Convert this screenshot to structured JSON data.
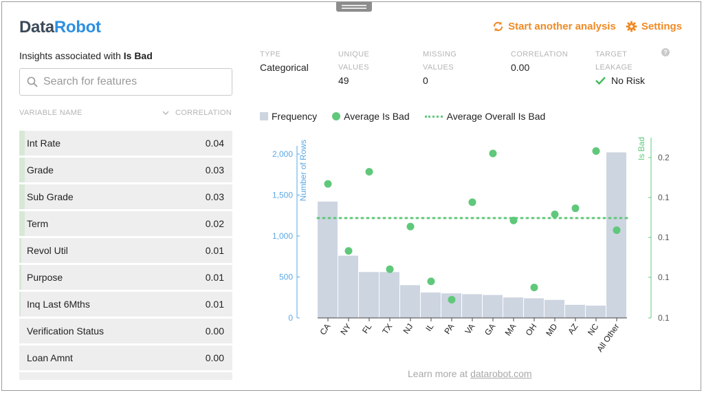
{
  "brand": {
    "part1": "Data",
    "part2": "Robot"
  },
  "header": {
    "start_label": "Start another analysis",
    "settings_label": "Settings"
  },
  "sidebar": {
    "insights_prefix": "Insights associated with ",
    "insights_target": "Is Bad",
    "search_placeholder": "Search for features",
    "col_variable": "VARIABLE NAME",
    "col_correlation": "CORRELATION",
    "rows": [
      {
        "name": "Int Rate",
        "value": "0.04"
      },
      {
        "name": "Grade",
        "value": "0.03"
      },
      {
        "name": "Sub Grade",
        "value": "0.03"
      },
      {
        "name": "Term",
        "value": "0.02"
      },
      {
        "name": "Revol Util",
        "value": "0.01"
      },
      {
        "name": "Purpose",
        "value": "0.01"
      },
      {
        "name": "Inq Last 6Mths",
        "value": "0.01"
      },
      {
        "name": "Verification Status",
        "value": "0.00"
      },
      {
        "name": "Loan Amnt",
        "value": "0.00"
      }
    ]
  },
  "stats": {
    "type": {
      "l1": "TYPE",
      "l2": "",
      "value": "Categorical"
    },
    "unique": {
      "l1": "UNIQUE",
      "l2": "VALUES",
      "value": "49"
    },
    "missing": {
      "l1": "MISSING",
      "l2": "VALUES",
      "value": "0"
    },
    "correlation": {
      "l1": "CORRELATION",
      "l2": "",
      "value": "0.00"
    },
    "leakage": {
      "l1": "TARGET",
      "l2": "LEAKAGE",
      "value": "No Risk"
    }
  },
  "help_label": "?",
  "legend": {
    "frequency": "Frequency",
    "avg": "Average Is Bad",
    "overall": "Average Overall Is Bad"
  },
  "footer": {
    "prefix": "Learn more at ",
    "link": "datarobot.com"
  },
  "colors": {
    "accent": "#f08a24",
    "bar": "#cdd5e1",
    "dot": "#60c87a",
    "left_axis": "#5aa8e6",
    "right_axis": "#60c87a"
  },
  "chart_data": {
    "type": "bar",
    "categories": [
      "CA",
      "NY",
      "FL",
      "TX",
      "NJ",
      "IL",
      "PA",
      "VA",
      "GA",
      "MA",
      "OH",
      "MD",
      "AZ",
      "NC",
      "All Other"
    ],
    "series": [
      {
        "name": "Frequency",
        "axis": "left",
        "values": [
          1420,
          760,
          560,
          560,
          400,
          310,
          300,
          290,
          280,
          250,
          240,
          220,
          160,
          150,
          2020
        ]
      },
      {
        "name": "Average Is Bad",
        "axis": "right",
        "type": "scatter",
        "values": [
          0.19,
          0.135,
          0.2,
          0.12,
          0.155,
          0.11,
          0.095,
          0.175,
          0.215,
          0.16,
          0.105,
          0.165,
          0.17,
          0.217,
          0.152
        ]
      }
    ],
    "overall_average": 0.162,
    "ylabel_left": "Number of Rows",
    "ylabel_right": "Is Bad",
    "yticks_left": [
      "0",
      "500",
      "1,000",
      "1,500",
      "2,000"
    ],
    "yticks_right": [
      "0.1",
      "0.1",
      "0.1",
      "0.1",
      "0.2"
    ],
    "ylim_left": [
      0,
      2200
    ],
    "ylim_right": [
      0.08,
      0.228
    ]
  }
}
